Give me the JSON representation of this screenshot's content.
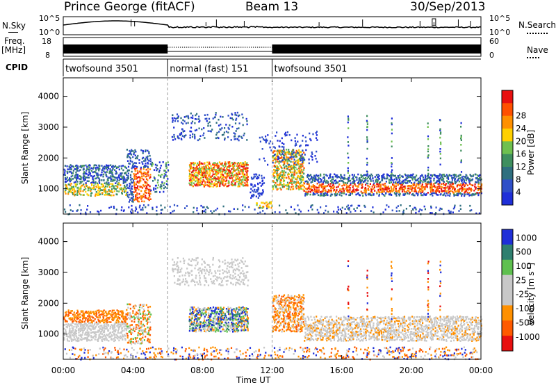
{
  "header": {
    "station": "Prince George (fitACF)",
    "beam": "Beam 13",
    "date": "30/Sep/2013"
  },
  "panel_labels": {
    "nsky": "N.Sky",
    "nsearch": "N.Search",
    "freq": "Freq.",
    "freq_unit": "[MHz]",
    "nave": "Nave",
    "cpid": "CPID"
  },
  "noise_ticks": {
    "top": "10^5",
    "bottom": "10^0"
  },
  "freq_ticks": {
    "left_top": "18",
    "left_bottom": "8",
    "right_top": "60",
    "right_bottom": "0"
  },
  "cpid_segments": [
    {
      "label": "twofsound 3501",
      "start_hour": 0,
      "end_hour": 6
    },
    {
      "label": "normal (fast) 151",
      "start_hour": 6,
      "end_hour": 12
    },
    {
      "label": "twofsound 3501",
      "start_hour": 12,
      "end_hour": 24
    }
  ],
  "colors": {
    "power": [
      "#1f2fd8",
      "#2f4fc8",
      "#2f6f7f",
      "#3f8f5f",
      "#6fc04f",
      "#ffd000",
      "#ff9000",
      "#ff5000",
      "#e81010"
    ],
    "velocity": [
      "#1f2fd8",
      "#2f7f6f",
      "#5fc04f",
      "#c8c8c8",
      "#c8c8c8",
      "#ff9000",
      "#ff5a00",
      "#e81010"
    ],
    "gray": "#c8c8c8"
  },
  "chart_data": [
    {
      "type": "heatmap",
      "name_label": "power",
      "ylabel": "Slant Range [km]",
      "colorbar_label": "Power [dB]",
      "colorbar_ticks": [
        "4",
        "8",
        "12",
        "16",
        "20",
        "24",
        "28"
      ],
      "ylim": [
        180,
        4600
      ],
      "yticks": [
        "1000",
        "2000",
        "3000",
        "4000"
      ],
      "xlim": [
        0,
        24
      ]
    },
    {
      "type": "heatmap",
      "name_label": "velocity",
      "ylabel": "Slant Range [km]",
      "colorbar_label": "Velocity [m s^-1]",
      "colorbar_ticks": [
        "1000",
        "500",
        "100",
        "25",
        "-25",
        "-100",
        "-500",
        "-1000"
      ],
      "ylim": [
        180,
        4600
      ],
      "yticks": [
        "1000",
        "2000",
        "3000",
        "4000"
      ],
      "xlim": [
        0,
        24
      ]
    }
  ],
  "xaxis": {
    "label": "Time UT",
    "ticks": [
      "00:00",
      "04:00",
      "08:00",
      "12:00",
      "16:00",
      "20:00",
      "00:00"
    ],
    "hours": [
      0,
      4,
      8,
      12,
      16,
      20,
      24
    ]
  }
}
